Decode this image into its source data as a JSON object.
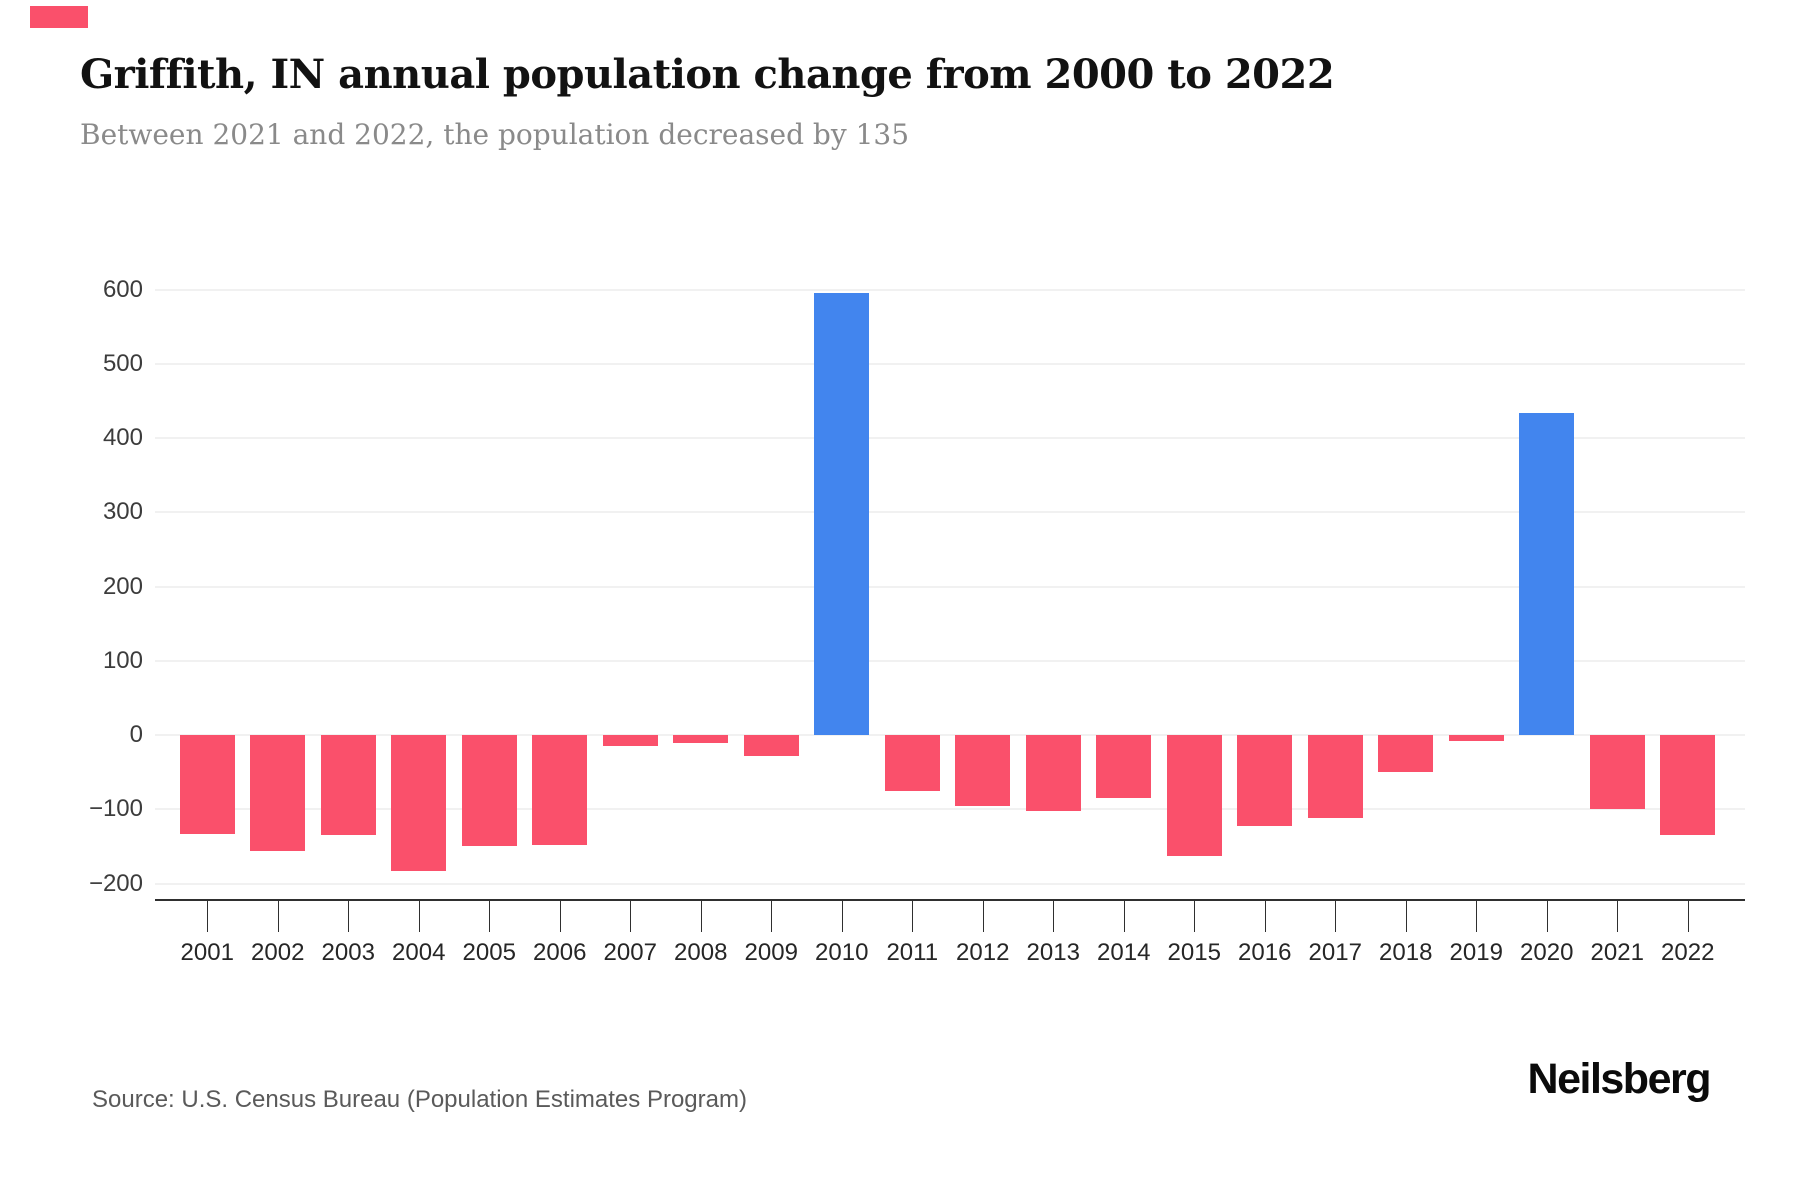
{
  "page": {
    "title": "Griffith, IN annual population change from 2000 to 2022",
    "subtitle": "Between 2021 and 2022, the population decreased by 135",
    "source": "Source: U.S. Census Bureau (Population Estimates Program)",
    "logo_text": "Neilsberg",
    "accent_color": "#fa506b"
  },
  "chart_data": {
    "type": "bar",
    "title": "Griffith, IN annual population change from 2000 to 2022",
    "subtitle": "Between 2021 and 2022, the population decreased by 135",
    "categories": [
      "2001",
      "2002",
      "2003",
      "2004",
      "2005",
      "2006",
      "2007",
      "2008",
      "2009",
      "2010",
      "2011",
      "2012",
      "2013",
      "2014",
      "2015",
      "2016",
      "2017",
      "2018",
      "2019",
      "2020",
      "2021",
      "2022"
    ],
    "values": [
      -133,
      -156,
      -135,
      -183,
      -150,
      -148,
      -15,
      -11,
      -28,
      595,
      -75,
      -95,
      -102,
      -85,
      -163,
      -122,
      -112,
      -50,
      -8,
      433,
      -100,
      -135
    ],
    "xlabel": "",
    "ylabel": "",
    "ylim": [
      -200,
      600
    ],
    "yticks": [
      600,
      500,
      400,
      300,
      200,
      100,
      0,
      -100,
      -200
    ],
    "ytick_labels": [
      "600",
      "500",
      "400",
      "300",
      "200",
      "100",
      "0",
      "−100",
      "−200"
    ],
    "grid": true,
    "legend": "none",
    "bar_color_positive": "#4285ee",
    "bar_color_negative": "#fa506b"
  }
}
